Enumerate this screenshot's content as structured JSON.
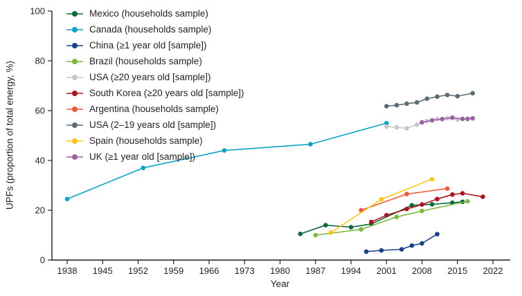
{
  "chart_data": {
    "type": "line",
    "title": "",
    "xlabel": "Year",
    "ylabel": "UPFs (proportion of total energy, %)",
    "xlim": [
      1935,
      2024
    ],
    "ylim": [
      0,
      100
    ],
    "x_ticks": [
      1938,
      1945,
      1952,
      1959,
      1966,
      1973,
      1980,
      1987,
      1994,
      2001,
      2008,
      2015,
      2022
    ],
    "y_ticks": [
      0,
      20,
      40,
      60,
      80,
      100
    ],
    "grid": false,
    "legend_position": "top-left",
    "axis_color": "#231f20",
    "series": [
      {
        "id": "mexico",
        "name": "Mexico (households sample)",
        "color": "#0a6b3a",
        "points": [
          [
            1984,
            10.5
          ],
          [
            1989,
            14.0
          ],
          [
            1994,
            13.2
          ],
          [
            1998,
            14.5
          ],
          [
            2006,
            22.0
          ],
          [
            2010,
            22.4
          ],
          [
            2014,
            23.0
          ],
          [
            2016,
            23.4
          ]
        ]
      },
      {
        "id": "canada",
        "name": "Canada (households sample)",
        "color": "#09a4c8",
        "points": [
          [
            1938,
            24.5
          ],
          [
            1953,
            37.0
          ],
          [
            1969,
            44.0
          ],
          [
            1986,
            46.5
          ],
          [
            2001,
            55.0
          ]
        ]
      },
      {
        "id": "china",
        "name": "China (≥1 year old [sample])",
        "color": "#17418e",
        "points": [
          [
            1997,
            3.4
          ],
          [
            2000,
            3.9
          ],
          [
            2004,
            4.3
          ],
          [
            2006,
            5.8
          ],
          [
            2008,
            6.7
          ],
          [
            2011,
            10.4
          ]
        ]
      },
      {
        "id": "brazil",
        "name": "Brazil (households sample)",
        "color": "#7ab93d",
        "points": [
          [
            1987,
            10.0
          ],
          [
            1996,
            12.3
          ],
          [
            2003,
            17.3
          ],
          [
            2008,
            19.7
          ],
          [
            2017,
            23.6
          ]
        ]
      },
      {
        "id": "usa-adults",
        "name": "USA (≥20 years old [sample])",
        "color": "#c6c7c9",
        "points": [
          [
            2001,
            53.6
          ],
          [
            2003,
            53.3
          ],
          [
            2005,
            52.9
          ],
          [
            2007,
            54.4
          ],
          [
            2009,
            55.8
          ],
          [
            2011,
            56.6
          ],
          [
            2013,
            57.0
          ],
          [
            2015,
            56.4
          ],
          [
            2018,
            57.0
          ]
        ]
      },
      {
        "id": "south-korea",
        "name": "South Korea (≥20 years old [sample])",
        "color": "#b0121b",
        "points": [
          [
            1998,
            15.3
          ],
          [
            2001,
            18.0
          ],
          [
            2005,
            20.5
          ],
          [
            2008,
            22.3
          ],
          [
            2011,
            24.5
          ],
          [
            2014,
            26.3
          ],
          [
            2016,
            26.8
          ],
          [
            2020,
            25.4
          ]
        ]
      },
      {
        "id": "argentina",
        "name": "Argentina (households sample)",
        "color": "#f0593b",
        "points": [
          [
            1996,
            20.0
          ],
          [
            2005,
            26.5
          ],
          [
            2013,
            28.7
          ]
        ]
      },
      {
        "id": "usa-youth",
        "name": "USA (2–19 years old [sample])",
        "color": "#5d6b74",
        "points": [
          [
            2001,
            61.8
          ],
          [
            2003,
            62.2
          ],
          [
            2005,
            62.8
          ],
          [
            2007,
            63.3
          ],
          [
            2009,
            64.8
          ],
          [
            2011,
            65.6
          ],
          [
            2013,
            66.3
          ],
          [
            2015,
            65.8
          ],
          [
            2018,
            67.0
          ]
        ]
      },
      {
        "id": "spain",
        "name": "Spain (households sample)",
        "color": "#fdc513",
        "points": [
          [
            1990,
            11.0
          ],
          [
            2000,
            24.4
          ],
          [
            2010,
            32.5
          ]
        ]
      },
      {
        "id": "uk",
        "name": "UK (≥1 year old [sample])",
        "color": "#9e5fa7",
        "points": [
          [
            2008,
            55.3
          ],
          [
            2010,
            56.1
          ],
          [
            2012,
            56.6
          ],
          [
            2014,
            57.2
          ],
          [
            2016,
            56.7
          ],
          [
            2017,
            56.7
          ],
          [
            2018,
            56.9
          ]
        ]
      }
    ]
  }
}
